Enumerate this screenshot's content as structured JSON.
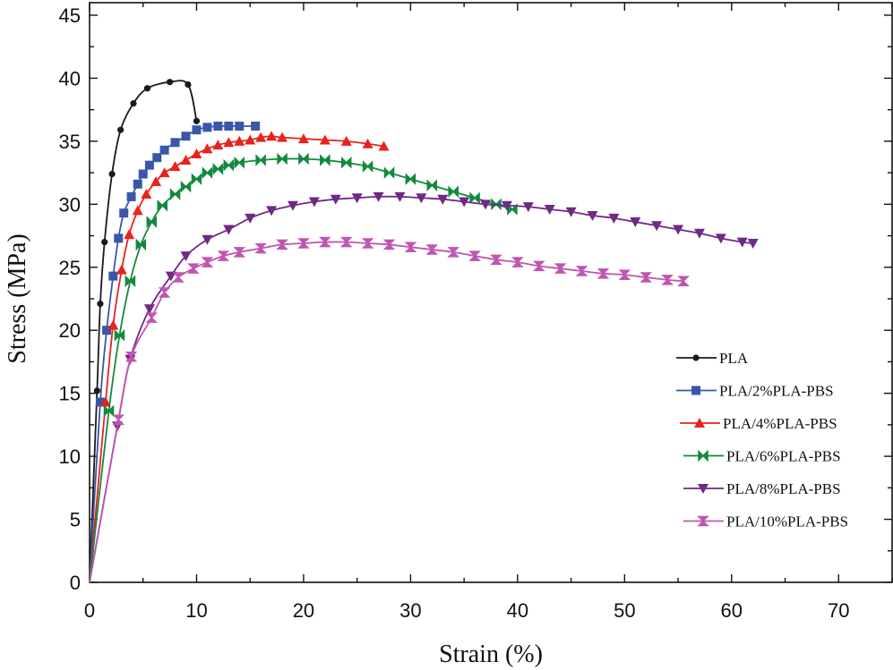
{
  "chart_data": {
    "type": "line",
    "title": "",
    "xlabel": "Strain (%)",
    "ylabel": "Stress (MPa)",
    "xlim": [
      0,
      75
    ],
    "ylim": [
      0,
      45
    ],
    "xticks": [
      0,
      10,
      20,
      30,
      40,
      50,
      60,
      70
    ],
    "yticks": [
      0,
      5,
      10,
      15,
      20,
      25,
      30,
      35,
      40,
      45
    ],
    "grid": false,
    "legend_position": "bottom-right",
    "series": [
      {
        "name": "PLA",
        "color": "#1a1a1a",
        "marker": "circle",
        "x": [
          0,
          0.7,
          1.0,
          1.4,
          2.1,
          2.9,
          4.1,
          5.4,
          7.5,
          9.2,
          10.0
        ],
        "y": [
          0,
          15.2,
          22.1,
          27.0,
          32.4,
          35.9,
          38.0,
          39.2,
          39.7,
          39.5,
          36.6
        ]
      },
      {
        "name": "PLA/2%PLA-PBS",
        "color": "#3a56a8",
        "marker": "square",
        "x": [
          0,
          1.0,
          1.6,
          2.2,
          2.7,
          3.2,
          3.9,
          4.5,
          5.0,
          5.6,
          6.3,
          7,
          8,
          9,
          10,
          11,
          12,
          13,
          14,
          15.5
        ],
        "y": [
          0,
          14.3,
          20.0,
          24.3,
          27.3,
          29.3,
          30.6,
          31.6,
          32.4,
          33.1,
          33.7,
          34.3,
          34.9,
          35.4,
          35.9,
          36.1,
          36.2,
          36.2,
          36.2,
          36.2
        ]
      },
      {
        "name": "PLA/4%PLA-PBS",
        "color": "#e8231f",
        "marker": "triangle-up",
        "x": [
          0,
          1.5,
          2.2,
          3.0,
          3.7,
          4.5,
          5.3,
          6.2,
          7,
          8,
          9,
          10,
          11,
          12,
          13,
          14,
          15,
          16,
          17,
          18,
          20,
          22,
          24,
          26,
          27.5
        ],
        "y": [
          0,
          14.3,
          20.4,
          24.8,
          27.6,
          29.5,
          30.8,
          31.8,
          32.5,
          33.0,
          33.5,
          34.0,
          34.4,
          34.7,
          34.9,
          35.0,
          35.1,
          35.3,
          35.4,
          35.3,
          35.2,
          35.1,
          35.0,
          34.8,
          34.6
        ]
      },
      {
        "name": "PLA/6%PLA-PBS",
        "color": "#138a3e",
        "marker": "bowtie",
        "x": [
          0,
          1.8,
          2.8,
          3.8,
          4.8,
          5.8,
          6.8,
          8,
          9,
          10,
          11,
          12,
          13,
          14,
          16,
          18,
          20,
          22,
          24,
          26,
          28,
          30,
          32,
          34,
          36,
          38,
          39.5
        ],
        "y": [
          0,
          13.6,
          19.6,
          23.9,
          26.8,
          28.6,
          29.9,
          30.8,
          31.4,
          32.0,
          32.5,
          32.8,
          33.1,
          33.3,
          33.5,
          33.6,
          33.6,
          33.5,
          33.3,
          33.0,
          32.5,
          32.0,
          31.5,
          31.0,
          30.5,
          30.0,
          29.6
        ]
      },
      {
        "name": "PLA/8%PLA-PBS",
        "color": "#6e2a84",
        "marker": "triangle-down",
        "x": [
          0,
          2.6,
          3.8,
          5.6,
          7.6,
          9,
          11,
          13,
          15,
          17,
          19,
          21,
          23,
          25,
          27,
          29,
          31,
          33,
          35,
          37,
          39,
          41,
          43,
          45,
          47,
          49,
          51,
          53,
          55,
          57,
          59,
          61,
          62
        ],
        "y": [
          0,
          12.4,
          17.7,
          21.7,
          24.3,
          25.9,
          27.2,
          28.0,
          28.9,
          29.5,
          29.9,
          30.2,
          30.4,
          30.5,
          30.6,
          30.6,
          30.5,
          30.4,
          30.2,
          30.0,
          29.9,
          29.8,
          29.6,
          29.4,
          29.1,
          28.9,
          28.6,
          28.3,
          28.0,
          27.7,
          27.3,
          27.0,
          26.9
        ]
      },
      {
        "name": "PLA/10%PLA-PBS",
        "color": "#c055b0",
        "marker": "hourglass",
        "x": [
          0,
          2.7,
          3.9,
          5.8,
          7,
          8.3,
          9.7,
          11,
          12.5,
          14,
          16,
          18,
          20,
          22,
          24,
          26,
          28,
          30,
          32,
          34,
          36,
          38,
          40,
          42,
          44,
          46,
          48,
          50,
          52,
          54,
          55.5
        ],
        "y": [
          0,
          12.9,
          17.9,
          21.0,
          23.0,
          24.2,
          24.9,
          25.4,
          25.9,
          26.2,
          26.5,
          26.8,
          26.9,
          27.0,
          27.0,
          26.9,
          26.8,
          26.6,
          26.4,
          26.2,
          25.9,
          25.6,
          25.4,
          25.1,
          24.9,
          24.7,
          24.5,
          24.4,
          24.2,
          24.0,
          23.9
        ]
      }
    ]
  }
}
